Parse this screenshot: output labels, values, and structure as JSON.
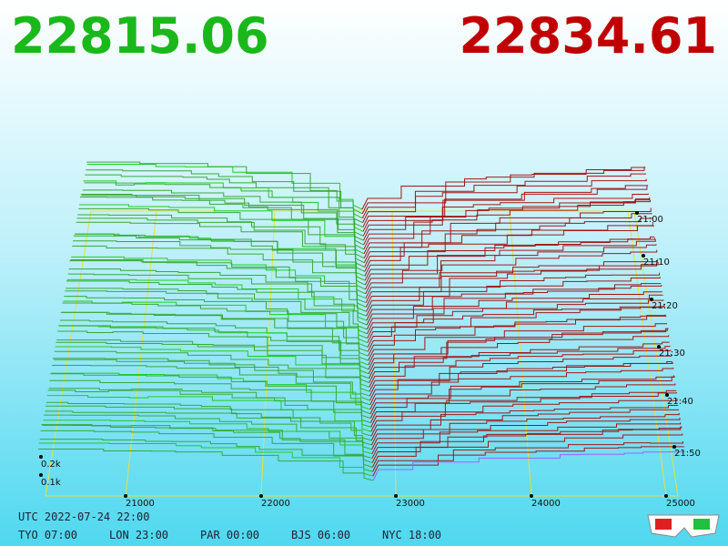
{
  "header": {
    "bid_price": "22815.06",
    "ask_price": "22834.61"
  },
  "price_axis": {
    "ticks": [
      "21000",
      "22000",
      "23000",
      "24000",
      "25000"
    ]
  },
  "depth_axis": {
    "ticks": [
      "0.1k",
      "0.2k"
    ]
  },
  "time_axis": {
    "ticks": [
      "21:00",
      "21:10",
      "21:20",
      "21:30",
      "21:40",
      "21:50"
    ]
  },
  "footer": {
    "utc": "UTC 2022-07-24 22:00",
    "zones": [
      "TYO 07:00",
      "LON 23:00",
      "PAR 00:00",
      "BJS 06:00",
      "NYC 18:00"
    ]
  }
}
